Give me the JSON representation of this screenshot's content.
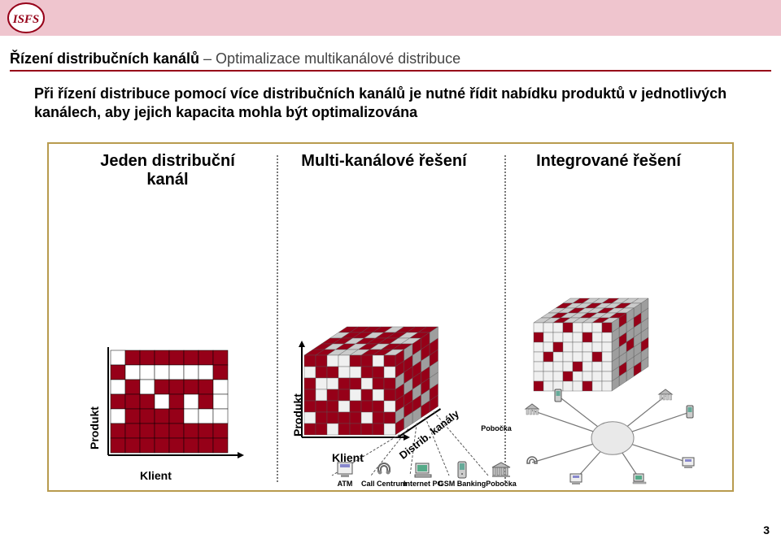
{
  "colors": {
    "topbar": "#EFC5CE",
    "accent": "#960018",
    "frame_border": "#B89B4E",
    "cube_light": "#F0F0F0",
    "cube_mid": "#CBCBCB",
    "cube_dark": "#9E9E9E",
    "axis": "#000000",
    "bg": "#FFFFFF"
  },
  "breadcrumb": {
    "bold": "Řízení distribučních kanálů",
    "rest": " – Optimalizace multikanálové distribuce"
  },
  "intro": "Při řízení distribuce pomocí více distribučních kanálů je nutné řídit nabídku produktů v jednotlivých kanálech, aby jejich kapacita mohla být optimalizována",
  "columns": {
    "c1": {
      "title": "Jeden distribuční kanál"
    },
    "c2": {
      "title": "Multi-kanálové řešení"
    },
    "c3": {
      "title": "Integrované řešení"
    }
  },
  "axis_labels": {
    "y": "Produkt",
    "x": "Klient",
    "z": "Distrib. kanály"
  },
  "grid2d": {
    "rows": 7,
    "cols": 8,
    "cell": 18,
    "fill": [
      "01111111",
      "10000001",
      "01011110",
      "11101010",
      "01111000",
      "11111111",
      "11111111"
    ]
  },
  "cube": {
    "rows": 7,
    "cols": 8,
    "depth": 5,
    "cell": 14,
    "top_fill": [
      "11000110",
      "10101011",
      "11011100",
      "01101101",
      "11110111"
    ],
    "front_fill": [
      "11001101",
      "01100110",
      "10011011",
      "10110101",
      "11101110",
      "01111011",
      "11011110"
    ],
    "side_fill": [
      "10110",
      "11011",
      "01101",
      "10110",
      "11010",
      "01101",
      "10011"
    ]
  },
  "channels": [
    {
      "id": "atm",
      "label": "ATM"
    },
    {
      "id": "call",
      "label": "Call Centrum"
    },
    {
      "id": "pc",
      "label": "Internet PC"
    },
    {
      "id": "gsm",
      "label": "GSM Banking"
    },
    {
      "id": "branch",
      "label": "Pobočka"
    }
  ],
  "hub_cube": {
    "rows": 7,
    "cols": 8,
    "depth": 5,
    "cell": 12,
    "top_fill": [
      "00100010",
      "01001001",
      "00100100",
      "10010010",
      "01001000"
    ],
    "front_fill": [
      "00010001",
      "10000100",
      "00100000",
      "01000010",
      "00001000",
      "00010000",
      "10000100"
    ],
    "side_fill": [
      "01000",
      "00010",
      "01000",
      "00100",
      "00001",
      "01000",
      "00010"
    ]
  },
  "page_number": "3"
}
